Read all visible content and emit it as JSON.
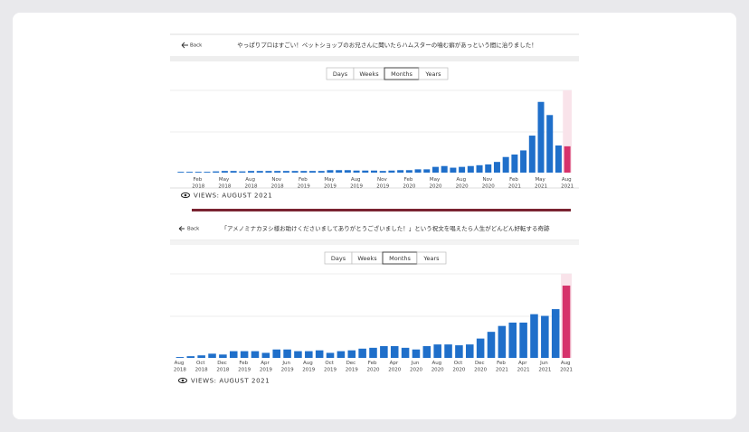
{
  "panels": [
    {
      "back": "Back",
      "title": "やっぱりプロはすごい！ペットショップのお兄さんに聞いたらハムスターの噛む癖があっという間に治りました！",
      "tabs": [
        "Days",
        "Weeks",
        "Months",
        "Years"
      ],
      "selected_tab": "Months",
      "footer": "VIEWS: AUGUST 2021"
    },
    {
      "back": "Back",
      "title": "「アメノミナカヌシ様お助けくださいましてありがとうございました！」という祝文を唱えたら人生がどんどん好転する奇跡",
      "tabs": [
        "Days",
        "Weeks",
        "Months",
        "Years"
      ],
      "selected_tab": "Months",
      "footer": "VIEWS: AUGUST 2021"
    }
  ],
  "chart_data": [
    {
      "type": "bar",
      "color": "#1f6fca",
      "highlight_color": "#d6326b",
      "ylim": [
        0,
        100
      ],
      "categories": [
        null,
        null,
        "Feb 2018",
        null,
        null,
        "May 2018",
        null,
        null,
        "Aug 2018",
        null,
        null,
        "Nov 2018",
        null,
        null,
        "Feb 2019",
        null,
        null,
        "May 2019",
        null,
        null,
        "Aug 2019",
        null,
        null,
        "Nov 2019",
        null,
        null,
        "Feb 2020",
        null,
        null,
        "May 2020",
        null,
        null,
        "Aug 2020",
        null,
        null,
        "Nov 2020",
        null,
        null,
        "Feb 2021",
        null,
        null,
        "May 2021",
        null,
        null,
        "Aug 2021"
      ],
      "values": [
        1,
        1,
        1,
        1,
        1.5,
        2,
        2,
        1.5,
        2,
        2,
        2,
        2,
        2,
        2,
        2,
        2,
        2,
        3,
        3,
        3,
        2.5,
        2.5,
        2.5,
        2,
        2.5,
        3,
        3,
        4,
        4,
        7,
        8,
        6,
        7,
        8,
        9,
        10,
        13,
        19,
        22,
        27,
        45,
        86,
        70,
        33,
        32
      ]
    },
    {
      "type": "bar",
      "color": "#1f6fca",
      "highlight_color": "#d6326b",
      "ylim": [
        0,
        100
      ],
      "categories": [
        "Aug 2018",
        null,
        "Oct 2018",
        null,
        "Dec 2018",
        null,
        "Feb 2019",
        null,
        "Apr 2019",
        null,
        "Jun 2019",
        null,
        "Aug 2019",
        null,
        "Oct 2019",
        null,
        "Dec 2019",
        null,
        "Feb 2020",
        null,
        "Apr 2020",
        null,
        "Jun 2020",
        null,
        "Aug 2020",
        null,
        "Oct 2020",
        null,
        "Dec 2020",
        null,
        "Feb 2021",
        null,
        "Apr 2021",
        null,
        "Jun 2021",
        null,
        "Aug 2021"
      ],
      "values": [
        1,
        2,
        3,
        5,
        4,
        8,
        8,
        8,
        6,
        10,
        10,
        8,
        8,
        9,
        6,
        8,
        9,
        11,
        12,
        14,
        14,
        12,
        10,
        14,
        16,
        16,
        15,
        16,
        23,
        31,
        38,
        42,
        42,
        52,
        50,
        58,
        86
      ]
    }
  ]
}
